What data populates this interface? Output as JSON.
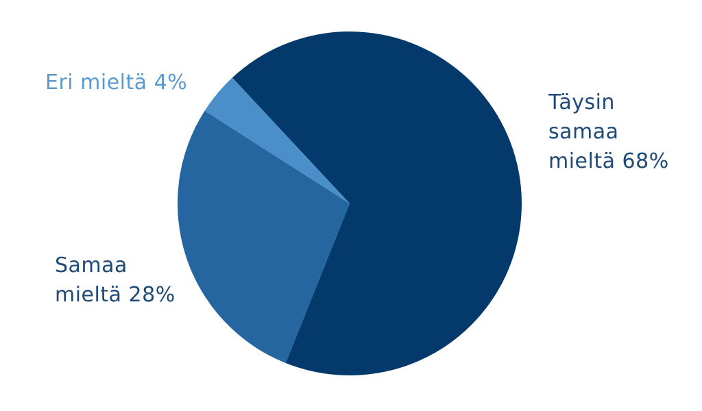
{
  "chart_data": {
    "type": "pie",
    "categories": [
      "Täysin samaa mieltä",
      "Samaa mieltä",
      "Eri mieltä"
    ],
    "values": [
      68,
      28,
      4
    ],
    "value_labels": [
      "68%",
      "28%",
      "4%"
    ],
    "colors": [
      "#033a6b",
      "#2566a0",
      "#4a8fca"
    ],
    "label_colors": [
      "#1f4a78",
      "#1f4a78",
      "#5a9acf"
    ]
  }
}
